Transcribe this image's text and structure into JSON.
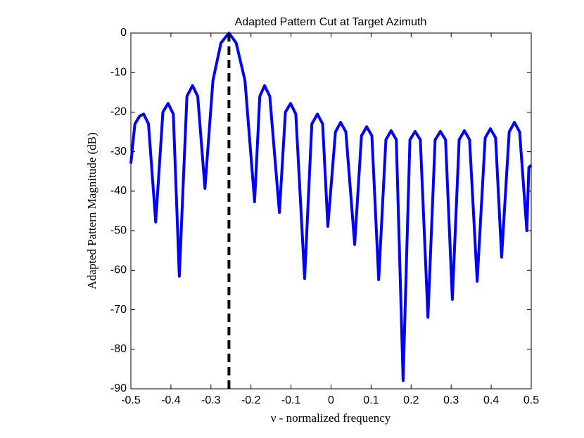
{
  "chart_data": {
    "type": "line",
    "title": "Adapted Pattern Cut at Target Azimuth",
    "x_label": "ν - normalized frequency",
    "y_label": "Adapted Pattern Magnitude (dB)",
    "x": [
      -0.5,
      -0.49,
      -0.478,
      -0.468,
      -0.456,
      -0.438,
      -0.42,
      -0.407,
      -0.394,
      -0.379,
      -0.36,
      -0.346,
      -0.333,
      -0.315,
      -0.295,
      -0.275,
      -0.255,
      -0.237,
      -0.215,
      -0.191,
      -0.178,
      -0.166,
      -0.153,
      -0.129,
      -0.114,
      -0.101,
      -0.088,
      -0.066,
      -0.048,
      -0.034,
      -0.021,
      -0.008,
      0.011,
      0.024,
      0.037,
      0.059,
      0.076,
      0.089,
      0.102,
      0.119,
      0.137,
      0.15,
      0.163,
      0.18,
      0.197,
      0.21,
      0.223,
      0.242,
      0.26,
      0.273,
      0.286,
      0.303,
      0.32,
      0.333,
      0.346,
      0.365,
      0.385,
      0.398,
      0.411,
      0.426,
      0.445,
      0.458,
      0.471,
      0.489,
      0.494,
      0.5
    ],
    "series": [
      {
        "color": "#0000ff",
        "values": [
          -33,
          -23,
          -21,
          -20.5,
          -23,
          -47.8,
          -20,
          -17.8,
          -20.5,
          -61.5,
          -16,
          -13.3,
          -16,
          -39.3,
          -12,
          -2.5,
          0,
          -2.5,
          -12,
          -42.7,
          -16,
          -13.3,
          -16,
          -45.4,
          -20,
          -17.8,
          -20.5,
          -62.1,
          -23,
          -20.5,
          -23,
          -48.9,
          -25,
          -22.6,
          -25,
          -53.5,
          -26,
          -23.7,
          -26,
          -62.4,
          -27,
          -24.7,
          -27,
          -87.9,
          -27,
          -24.9,
          -27,
          -71.9,
          -27,
          -24.9,
          -27,
          -67.4,
          -27,
          -24.7,
          -27,
          -62.8,
          -26.5,
          -24.2,
          -26.5,
          -56.7,
          -25,
          -22.6,
          -25,
          -50,
          -34,
          -33.4
        ]
      }
    ],
    "vline": {
      "x": -0.255,
      "color": "#000000"
    },
    "xlim": [
      -0.5,
      0.5
    ],
    "xticks": [
      -0.5,
      -0.4,
      -0.3,
      -0.2,
      -0.1,
      0,
      0.1,
      0.2,
      0.3,
      0.4,
      0.5
    ],
    "ylim": [
      -90,
      0
    ],
    "yticks": [
      -90,
      -80,
      -70,
      -60,
      -50,
      -40,
      -30,
      -20,
      -10,
      0
    ]
  }
}
